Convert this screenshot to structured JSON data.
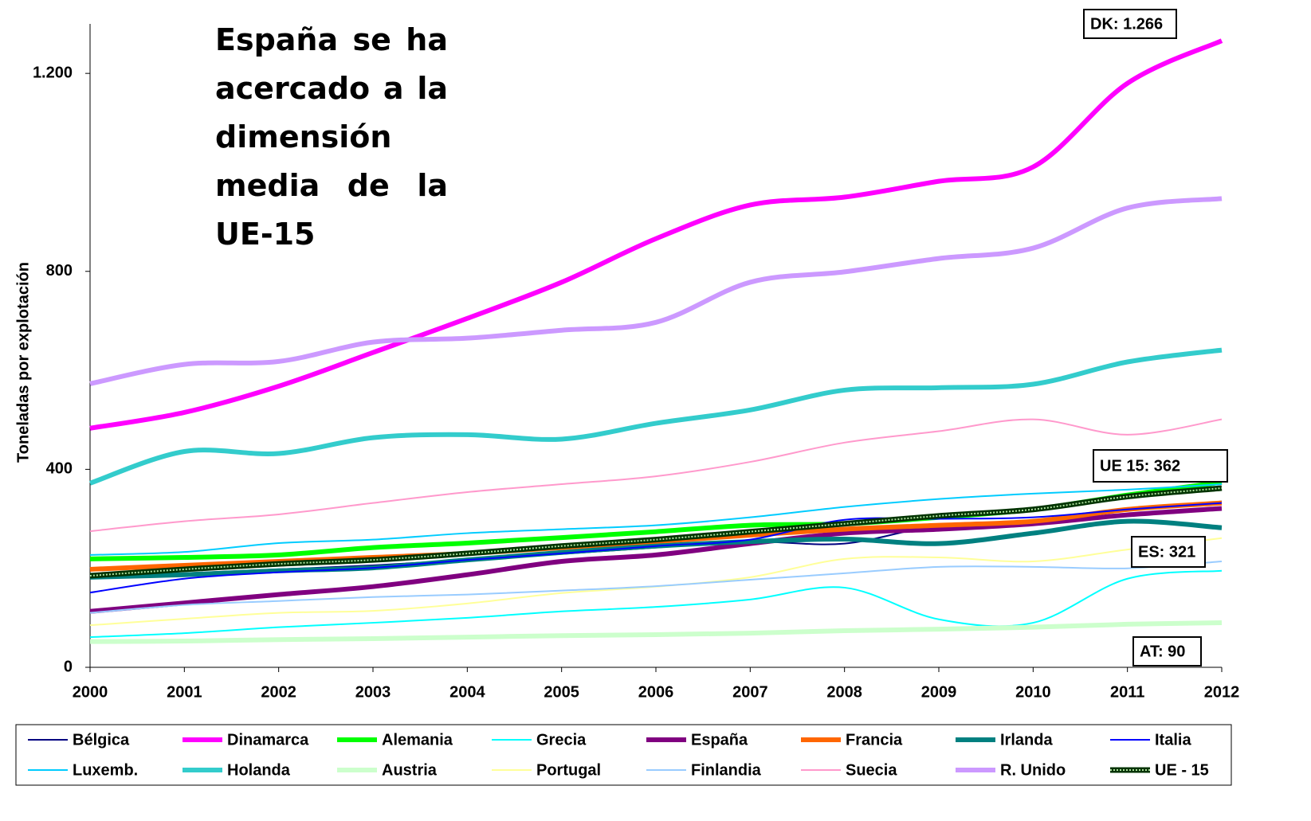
{
  "chart_data": {
    "type": "line",
    "y_label": "Toneladas por explotación",
    "annotations": [
      "España se ha acercado a la dimensión media de la UE-15",
      "DK: 1.266",
      "UE 15: 362",
      "ES: 321",
      "AT: 90"
    ],
    "x": [
      2000,
      2001,
      2002,
      2003,
      2004,
      2005,
      2006,
      2007,
      2008,
      2009,
      2010,
      2011,
      2012
    ],
    "xlim": [
      2000,
      2012
    ],
    "xticks": [
      2000,
      2001,
      2002,
      2003,
      2004,
      2005,
      2006,
      2007,
      2008,
      2009,
      2010,
      2011,
      2012
    ],
    "ylim": [
      0,
      1300
    ],
    "yticks": [
      0,
      400,
      800,
      {
        "value": 1200,
        "label": "1.200"
      }
    ],
    "series": [
      {
        "name": "Bélgica",
        "color": "#000080",
        "values": [
          182,
          190,
          198,
          206,
          217,
          229,
          242,
          254,
          250,
          287,
          295,
          319,
          335
        ]
      },
      {
        "name": "Dinamarca",
        "color": "#ff00ff",
        "values": [
          483,
          515,
          568,
          636,
          705,
          778,
          866,
          934,
          950,
          982,
          1011,
          1180,
          1266
        ]
      },
      {
        "name": "Alemania",
        "color": "#00ff00",
        "values": [
          219,
          222,
          227,
          242,
          251,
          262,
          274,
          287,
          290,
          303,
          319,
          348,
          374
        ]
      },
      {
        "name": "Grecia",
        "color": "#00ffff",
        "values": [
          61,
          69,
          81,
          90,
          100,
          113,
          122,
          137,
          161,
          97,
          90,
          179,
          195
        ]
      },
      {
        "name": "España",
        "color": "#800080",
        "values": [
          113,
          130,
          147,
          163,
          187,
          214,
          227,
          250,
          271,
          279,
          290,
          308,
          321
        ]
      },
      {
        "name": "Francia",
        "color": "#ff6600",
        "values": [
          198,
          206,
          214,
          222,
          230,
          242,
          254,
          267,
          279,
          287,
          295,
          319,
          332
        ]
      },
      {
        "name": "Irlanda",
        "color": "#008080",
        "values": [
          182,
          187,
          195,
          201,
          217,
          232,
          245,
          254,
          259,
          250,
          271,
          295,
          282
        ]
      },
      {
        "name": "Italia",
        "color": "#0000ff",
        "values": [
          151,
          179,
          192,
          201,
          217,
          230,
          245,
          258,
          298,
          300,
          303,
          319,
          332
        ]
      },
      {
        "name": "Luxemb.",
        "color": "#00ccff",
        "values": [
          227,
          233,
          251,
          258,
          271,
          279,
          287,
          303,
          324,
          340,
          351,
          359,
          370
        ]
      },
      {
        "name": "Holanda",
        "color": "#33cccc",
        "values": [
          372,
          436,
          432,
          464,
          470,
          461,
          493,
          520,
          560,
          565,
          572,
          617,
          641
        ]
      },
      {
        "name": "Austria",
        "color": "#ccffcc",
        "values": [
          52,
          53,
          56,
          58,
          61,
          64,
          66,
          69,
          74,
          77,
          81,
          87,
          90
        ]
      },
      {
        "name": "Portugal",
        "color": "#ffff99",
        "values": [
          85,
          98,
          110,
          114,
          129,
          150,
          163,
          182,
          219,
          222,
          214,
          238,
          261
        ]
      },
      {
        "name": "Finlandia",
        "color": "#99ccff",
        "values": [
          110,
          126,
          134,
          142,
          147,
          155,
          164,
          177,
          190,
          203,
          203,
          200,
          214
        ]
      },
      {
        "name": "Suecia",
        "color": "#ff99cc",
        "values": [
          275,
          295,
          309,
          332,
          354,
          370,
          386,
          415,
          454,
          477,
          501,
          470,
          501
        ]
      },
      {
        "name": "R. Unido",
        "color": "#cc99ff",
        "values": [
          573,
          612,
          618,
          657,
          665,
          681,
          697,
          778,
          799,
          826,
          847,
          928,
          947
        ]
      },
      {
        "name": "UE - 15",
        "color": "#003300",
        "values": [
          185,
          198,
          209,
          217,
          230,
          245,
          258,
          274,
          290,
          306,
          319,
          345,
          362
        ]
      }
    ]
  }
}
